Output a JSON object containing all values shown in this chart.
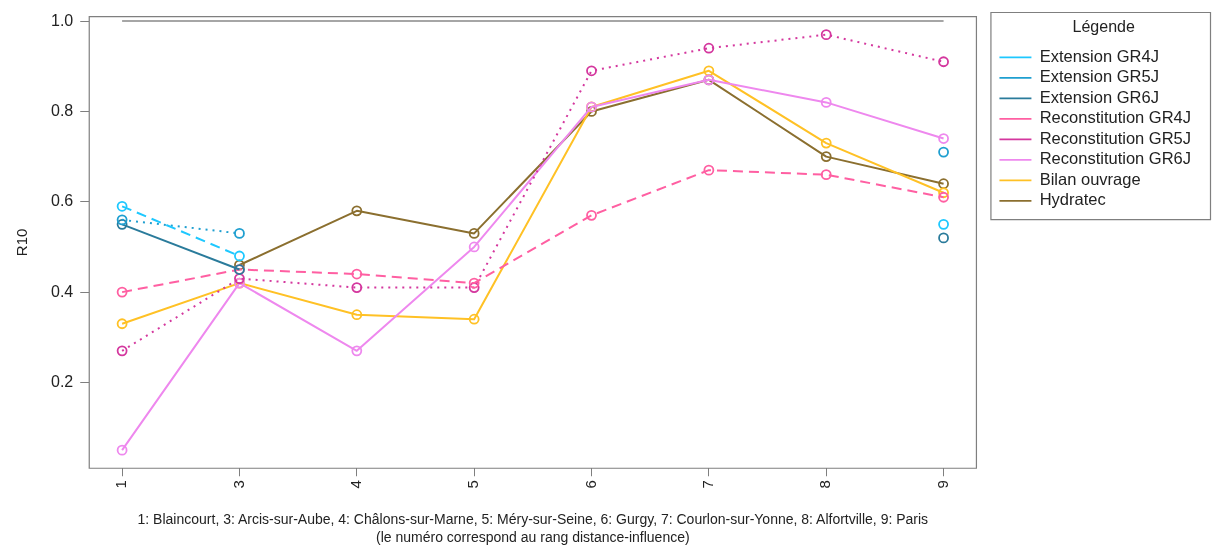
{
  "chart_data": {
    "type": "line",
    "categories": [
      "1",
      "3",
      "4",
      "5",
      "6",
      "7",
      "8",
      "9"
    ],
    "xlabel": "1: Blaincourt, 3: Arcis-sur-Aube, 4: Châlons-sur-Marne, 5: Méry-sur-Seine, 6: Gurgy, 7: Courlon-sur-Yonne, 8: Alfortville, 9: Paris\n(le numéro correspond au rang distance-influence)",
    "ylabel": "R10",
    "ylim": [
      0.01,
      1.01
    ],
    "yticks": [
      0.2,
      0.4,
      0.6,
      0.8,
      {
        "value": 1,
        "label": "1.0"
      }
    ],
    "legend": "right",
    "legend_title": "Légende",
    "marker": "circle",
    "series": [
      {
        "color": "#a6a6a6",
        "values": [
          1,
          1,
          1,
          1,
          1,
          1,
          1,
          1
        ],
        "line_style": "solid",
        "marker": "none"
      },
      {
        "name": "Extension GR4J",
        "color": "#1ec8ff",
        "line_style": "dashed",
        "values": [
          0.59,
          0.48,
          null,
          null,
          null,
          null,
          null,
          0.55
        ]
      },
      {
        "name": "Extension GR5J",
        "color": "#1f9fd0",
        "line_style": "dotted",
        "values": [
          0.56,
          0.53,
          null,
          null,
          null,
          null,
          null,
          0.71
        ]
      },
      {
        "name": "Extension GR6J",
        "color": "#2a7b9b",
        "line_style": "solid",
        "values": [
          0.55,
          0.45,
          null,
          null,
          null,
          null,
          null,
          0.52
        ]
      },
      {
        "name": "Reconstitution GR4J",
        "color": "#ff5fa2",
        "line_style": "dashed",
        "values": [
          0.4,
          0.45,
          0.44,
          0.42,
          0.57,
          0.67,
          0.66,
          0.61
        ]
      },
      {
        "name": "Reconstitution GR5J",
        "color": "#d4379e",
        "line_style": "dotted",
        "values": [
          0.27,
          0.43,
          0.41,
          0.41,
          0.89,
          0.94,
          0.97,
          0.91
        ]
      },
      {
        "name": "Reconstitution GR6J",
        "color": "#ee88ee",
        "line_style": "solid",
        "values": [
          0.05,
          0.42,
          0.27,
          0.5,
          0.81,
          0.87,
          0.82,
          0.74
        ]
      },
      {
        "name": "Bilan ouvrage",
        "color": "#ffc125",
        "line_style": "solid",
        "values": [
          0.33,
          0.42,
          0.35,
          0.34,
          0.81,
          0.89,
          0.73,
          0.62
        ]
      },
      {
        "name": "Hydratec",
        "color": "#8b6f2f",
        "line_style": "solid",
        "values": [
          null,
          0.46,
          0.58,
          0.53,
          0.8,
          0.87,
          0.7,
          0.64
        ]
      }
    ]
  }
}
